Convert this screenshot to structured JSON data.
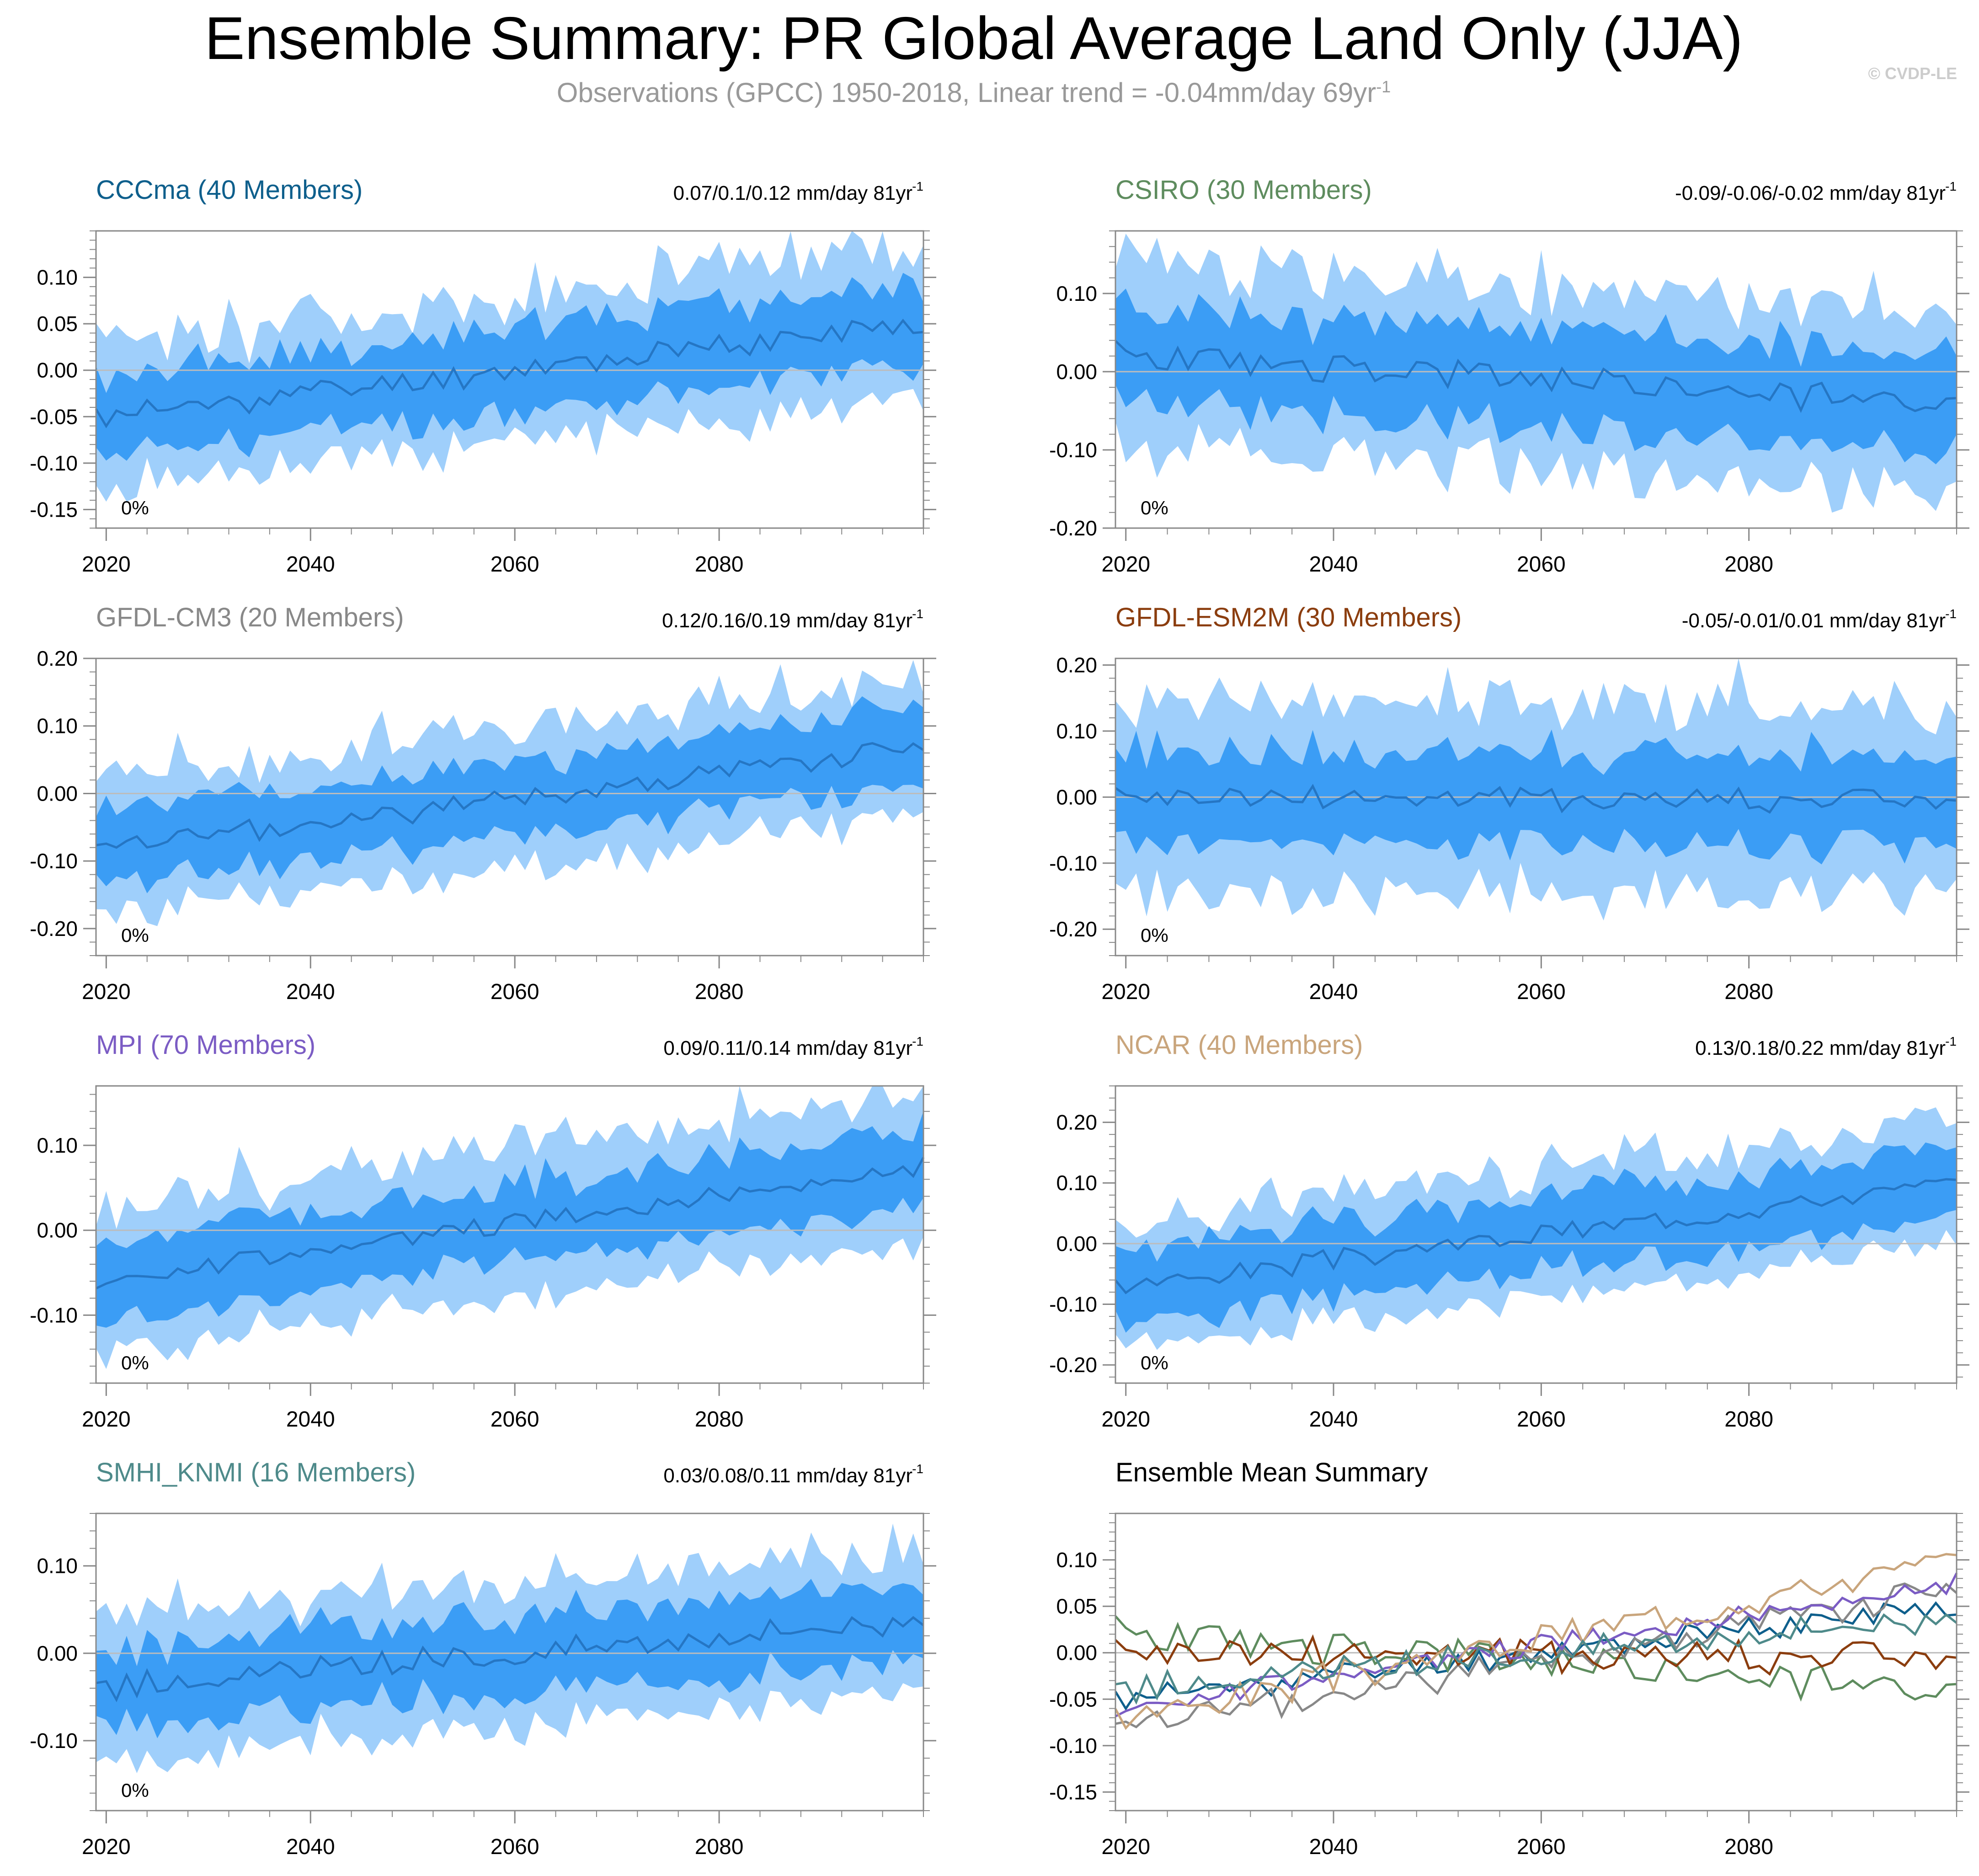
{
  "title": "Ensemble Summary: PR Global Average Land Only (JJA)",
  "subtitle": {
    "text": "Observations (GPCC) 1950-2018, Linear trend = -0.04mm/day 69yr",
    "superscript": "-1"
  },
  "copyright": "© CVDP-LE",
  "colors": {
    "band_outer": "#9fcffb",
    "band_inner": "#3b9df5",
    "mean_line": "#2576c4",
    "zero_line": "#bcbcbc",
    "axis": "#888888"
  },
  "chart_data": [
    {
      "type": "area",
      "name": "CCCma",
      "title": "CCCma (40 Members)",
      "title_color": "#0e5f8c",
      "trend_label": "0.07/0.1/0.12 mm/day 81yr",
      "trend_sup": "-1",
      "corner_label": "0%",
      "xlim": [
        2019,
        2100
      ],
      "ylim": [
        -0.17,
        0.15
      ],
      "x_ticks": [
        2020,
        2040,
        2060,
        2080
      ],
      "x_tick_labels": [
        "2020",
        "2040",
        "2060",
        "2080"
      ],
      "y_ticks": [
        -0.15,
        -0.1,
        -0.05,
        0.0,
        0.05,
        0.1
      ],
      "y_tick_labels": [
        "-0.15",
        "-0.10",
        "-0.05",
        "0.00",
        "0.05",
        "0.10"
      ],
      "start_mean": -0.05,
      "end_mean": 0.05,
      "inner_halfwidth": 0.045,
      "outer_halfwidth": 0.075,
      "noise": 0.012,
      "seed": 11
    },
    {
      "type": "area",
      "name": "CSIRO",
      "title": "CSIRO (30 Members)",
      "title_color": "#5e8c5e",
      "trend_label": "-0.09/-0.06/-0.02 mm/day 81yr",
      "trend_sup": "-1",
      "corner_label": "0%",
      "xlim": [
        2019,
        2100
      ],
      "ylim": [
        -0.2,
        0.18
      ],
      "x_ticks": [
        2020,
        2040,
        2060,
        2080
      ],
      "x_tick_labels": [
        "2020",
        "2040",
        "2060",
        "2080"
      ],
      "y_ticks": [
        -0.2,
        -0.1,
        0.0,
        0.1
      ],
      "y_tick_labels": [
        "-0.20",
        "-0.10",
        "0.00",
        "0.10"
      ],
      "start_mean": 0.02,
      "end_mean": -0.04,
      "inner_halfwidth": 0.06,
      "outer_halfwidth": 0.115,
      "noise": 0.018,
      "seed": 23
    },
    {
      "type": "area",
      "name": "GFDL-CM3",
      "title": "GFDL-CM3 (20 Members)",
      "title_color": "#888888",
      "trend_label": "0.12/0.16/0.19 mm/day 81yr",
      "trend_sup": "-1",
      "corner_label": "0%",
      "xlim": [
        2019,
        2100
      ],
      "ylim": [
        -0.24,
        0.2
      ],
      "x_ticks": [
        2020,
        2040,
        2060,
        2080
      ],
      "x_tick_labels": [
        "2020",
        "2040",
        "2060",
        "2080"
      ],
      "y_ticks": [
        -0.2,
        -0.1,
        0.0,
        0.1,
        0.2
      ],
      "y_tick_labels": [
        "-0.20",
        "-0.10",
        "0.00",
        "0.10",
        "0.20"
      ],
      "start_mean": -0.085,
      "end_mean": 0.07,
      "inner_halfwidth": 0.055,
      "outer_halfwidth": 0.1,
      "noise": 0.015,
      "seed": 37
    },
    {
      "type": "area",
      "name": "GFDL-ESM2M",
      "title": "GFDL-ESM2M (30 Members)",
      "title_color": "#8b3d0e",
      "trend_label": "-0.05/-0.01/0.01 mm/day 81yr",
      "trend_sup": "-1",
      "corner_label": "0%",
      "xlim": [
        2019,
        2100
      ],
      "ylim": [
        -0.24,
        0.21
      ],
      "x_ticks": [
        2020,
        2040,
        2060,
        2080
      ],
      "x_tick_labels": [
        "2020",
        "2040",
        "2060",
        "2080"
      ],
      "y_ticks": [
        -0.2,
        -0.1,
        0.0,
        0.1,
        0.2
      ],
      "y_tick_labels": [
        "-0.20",
        "-0.10",
        "0.00",
        "0.10",
        "0.20"
      ],
      "start_mean": 0.0,
      "end_mean": -0.005,
      "inner_halfwidth": 0.07,
      "outer_halfwidth": 0.14,
      "noise": 0.018,
      "seed": 41
    },
    {
      "type": "area",
      "name": "MPI",
      "title": "MPI (70 Members)",
      "title_color": "#7b5cc4",
      "trend_label": "0.09/0.11/0.14 mm/day 81yr",
      "trend_sup": "-1",
      "corner_label": "0%",
      "xlim": [
        2019,
        2100
      ],
      "ylim": [
        -0.18,
        0.17
      ],
      "x_ticks": [
        2020,
        2040,
        2060,
        2080
      ],
      "x_tick_labels": [
        "2020",
        "2040",
        "2060",
        "2080"
      ],
      "y_ticks": [
        -0.1,
        0.0,
        0.1
      ],
      "y_tick_labels": [
        "-0.10",
        "0.00",
        "0.10"
      ],
      "start_mean": -0.06,
      "end_mean": 0.075,
      "inner_halfwidth": 0.045,
      "outer_halfwidth": 0.085,
      "noise": 0.01,
      "seed": 53
    },
    {
      "type": "area",
      "name": "NCAR",
      "title": "NCAR (40 Members)",
      "title_color": "#c9a57c",
      "trend_label": "0.13/0.18/0.22 mm/day 81yr",
      "trend_sup": "-1",
      "corner_label": "0%",
      "xlim": [
        2019,
        2100
      ],
      "ylim": [
        -0.23,
        0.26
      ],
      "x_ticks": [
        2020,
        2040,
        2060,
        2080
      ],
      "x_tick_labels": [
        "2020",
        "2040",
        "2060",
        "2080"
      ],
      "y_ticks": [
        -0.2,
        -0.1,
        0.0,
        0.1,
        0.2
      ],
      "y_tick_labels": [
        "-0.20",
        "-0.10",
        "0.00",
        "0.10",
        "0.20"
      ],
      "start_mean": -0.07,
      "end_mean": 0.1,
      "inner_halfwidth": 0.06,
      "outer_halfwidth": 0.1,
      "noise": 0.015,
      "seed": 67
    },
    {
      "type": "area",
      "name": "SMHI_KNMI",
      "title": "SMHI_KNMI (16 Members)",
      "title_color": "#4e8a8a",
      "trend_label": "0.03/0.08/0.11 mm/day 81yr",
      "trend_sup": "-1",
      "corner_label": "0%",
      "xlim": [
        2019,
        2100
      ],
      "ylim": [
        -0.18,
        0.16
      ],
      "x_ticks": [
        2020,
        2040,
        2060,
        2080
      ],
      "x_tick_labels": [
        "2020",
        "2040",
        "2060",
        "2080"
      ],
      "y_ticks": [
        -0.1,
        0.0,
        0.1
      ],
      "y_tick_labels": [
        "-0.10",
        "0.00",
        "0.10"
      ],
      "start_mean": -0.04,
      "end_mean": 0.04,
      "inner_halfwidth": 0.045,
      "outer_halfwidth": 0.08,
      "noise": 0.014,
      "seed": 79
    },
    {
      "type": "line",
      "name": "Ensemble Mean Summary",
      "title": "Ensemble Mean Summary",
      "title_color": "#000000",
      "xlim": [
        2019,
        2100
      ],
      "ylim": [
        -0.17,
        0.15
      ],
      "x_ticks": [
        2020,
        2040,
        2060,
        2080
      ],
      "x_tick_labels": [
        "2020",
        "2040",
        "2060",
        "2080"
      ],
      "y_ticks": [
        -0.15,
        -0.1,
        -0.05,
        0.0,
        0.05,
        0.1
      ],
      "y_tick_labels": [
        "-0.15",
        "-0.10",
        "-0.05",
        "0.00",
        "0.05",
        "0.10"
      ],
      "series": [
        {
          "name": "CCCma",
          "color": "#0e5f8c",
          "start_mean": -0.05,
          "end_mean": 0.05,
          "noise": 0.012,
          "seed": 11
        },
        {
          "name": "CSIRO",
          "color": "#5e8c5e",
          "start_mean": 0.02,
          "end_mean": -0.04,
          "noise": 0.018,
          "seed": 23
        },
        {
          "name": "GFDL-CM3",
          "color": "#888888",
          "start_mean": -0.085,
          "end_mean": 0.07,
          "noise": 0.015,
          "seed": 37
        },
        {
          "name": "GFDL-ESM2M",
          "color": "#8b3d0e",
          "start_mean": 0.0,
          "end_mean": -0.005,
          "noise": 0.018,
          "seed": 41
        },
        {
          "name": "MPI",
          "color": "#7b5cc4",
          "start_mean": -0.06,
          "end_mean": 0.075,
          "noise": 0.01,
          "seed": 53
        },
        {
          "name": "NCAR",
          "color": "#c9a57c",
          "start_mean": -0.07,
          "end_mean": 0.1,
          "noise": 0.015,
          "seed": 67
        },
        {
          "name": "SMHI_KNMI",
          "color": "#4e8a8a",
          "start_mean": -0.04,
          "end_mean": 0.04,
          "noise": 0.014,
          "seed": 79
        }
      ]
    }
  ]
}
